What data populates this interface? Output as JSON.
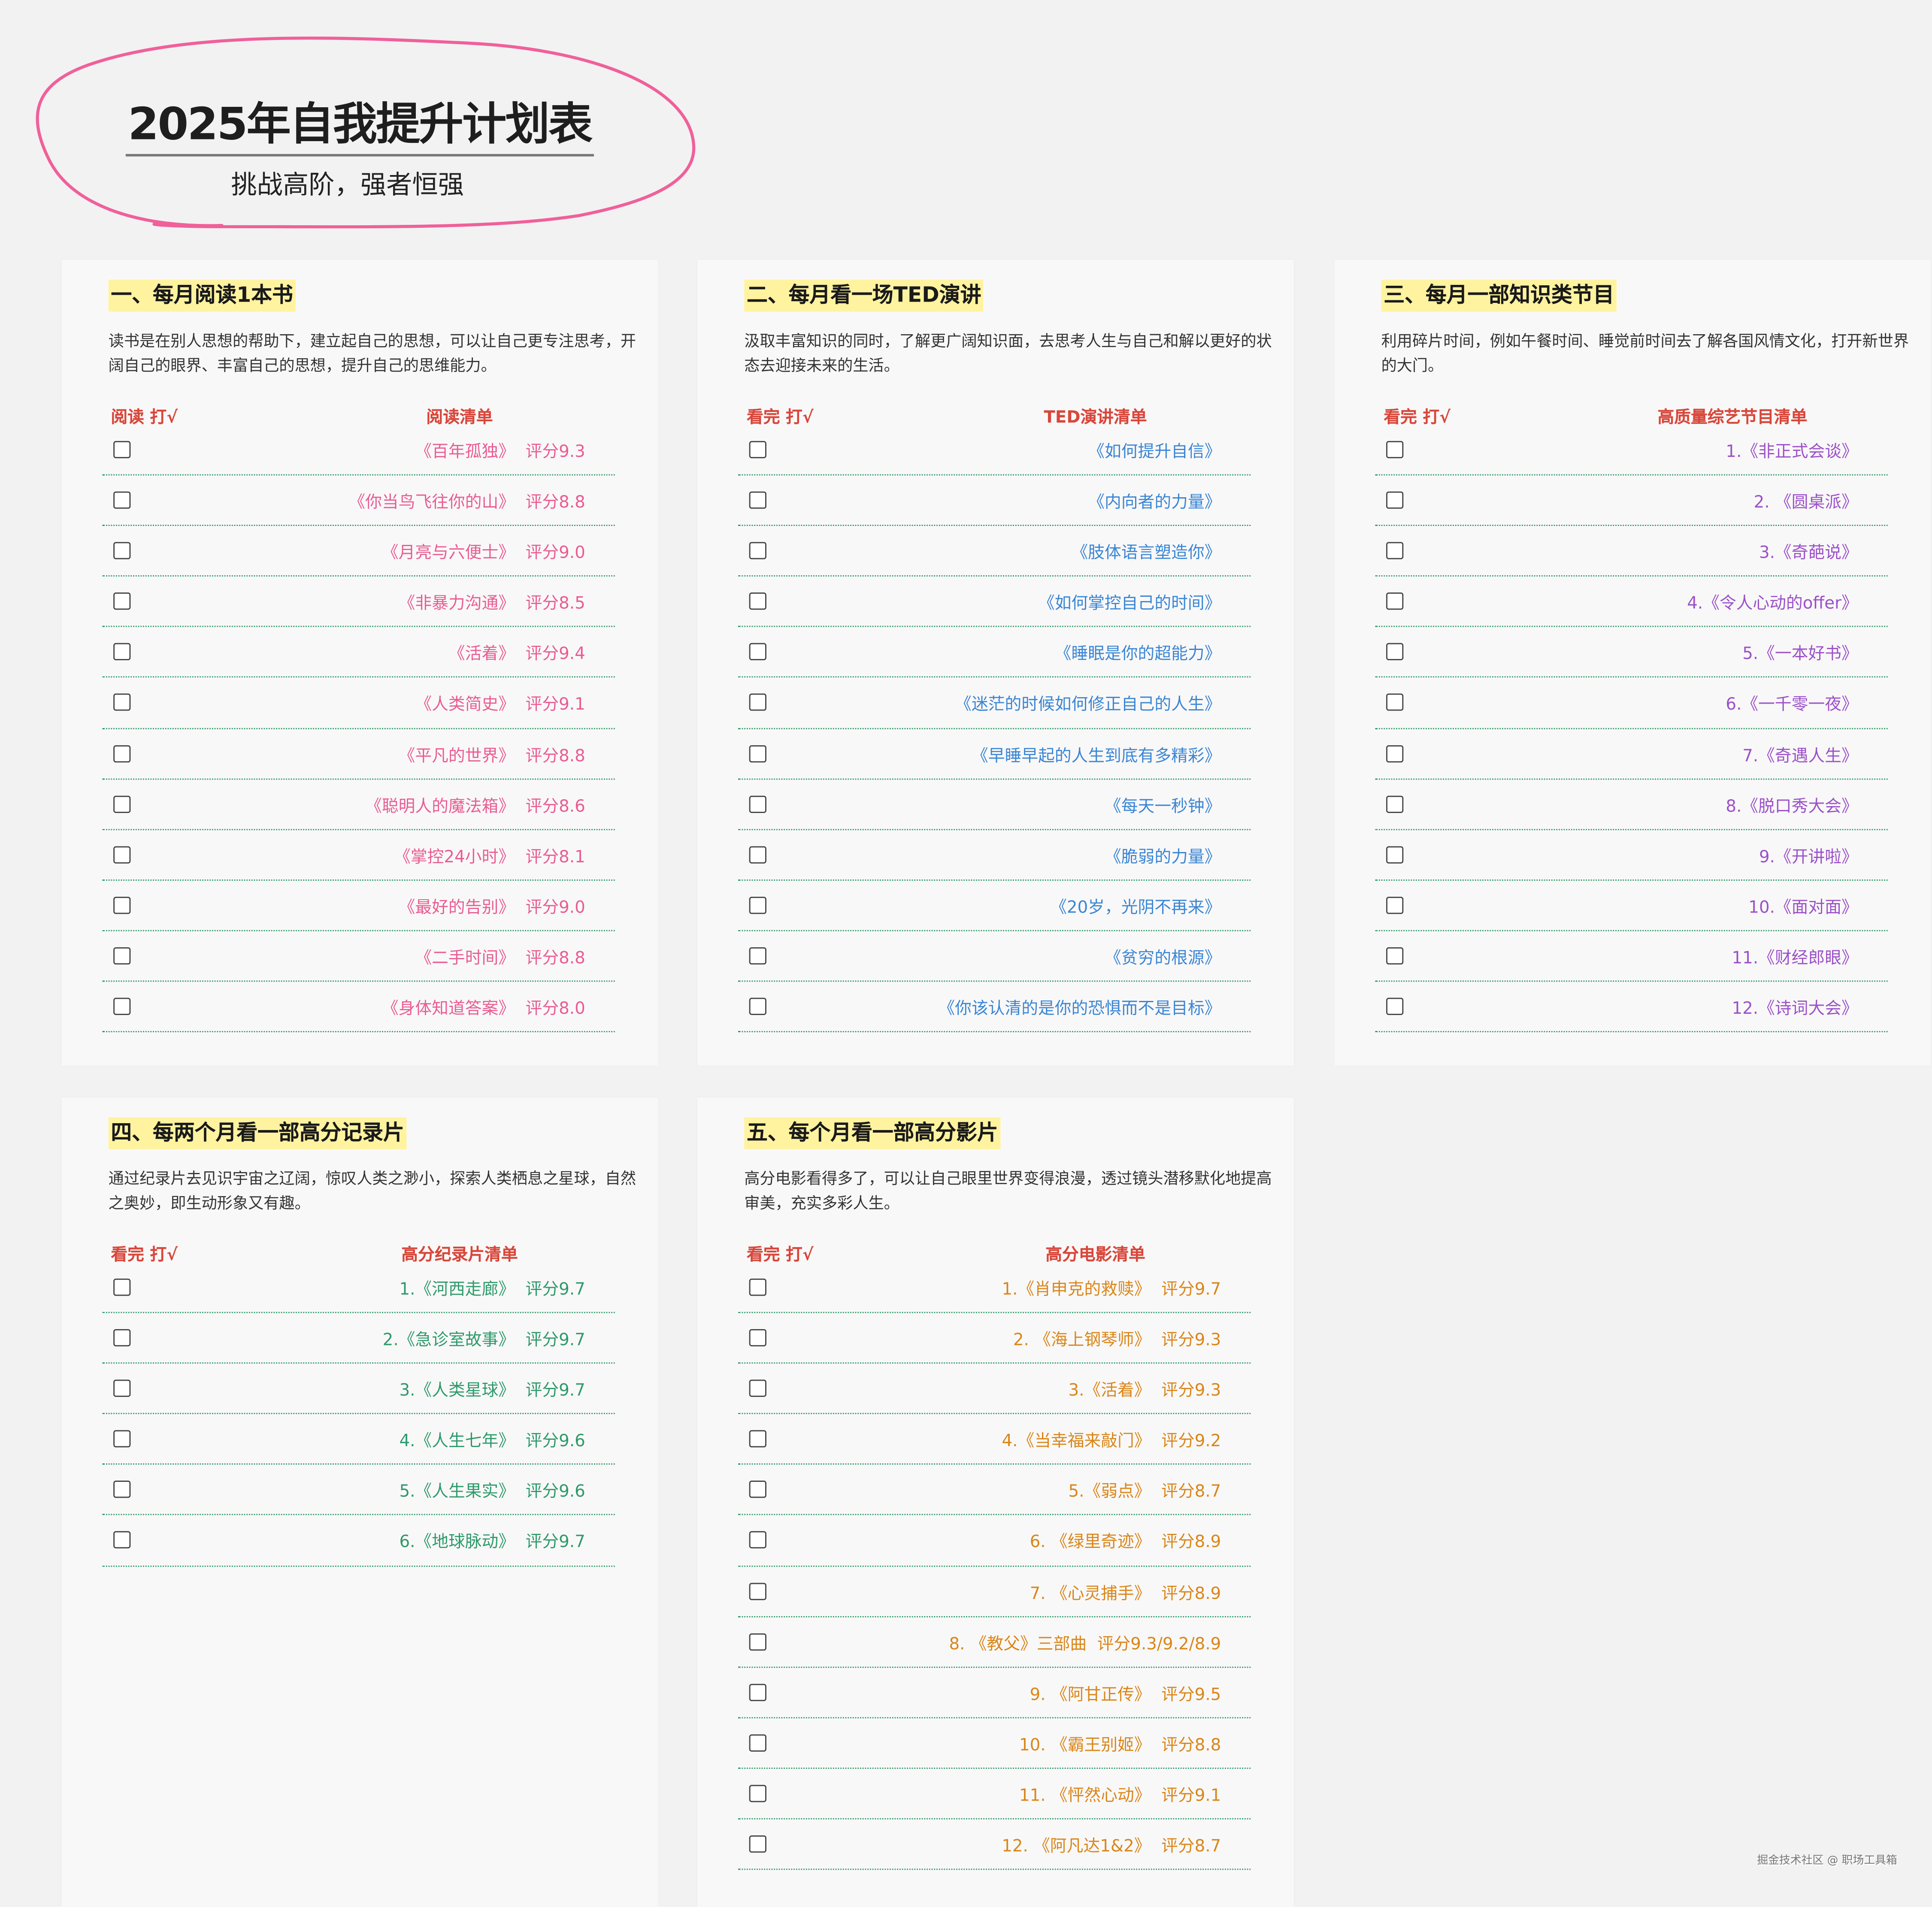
{
  "header": {
    "title": "2025年自我提升计划表",
    "subtitle": "挑战高阶，强者恒强",
    "ellipse_color": "#f0609a"
  },
  "colors": {
    "header_red": "#d8473b",
    "highlight": "#fff3a0",
    "divider_green": "#2e9a6b"
  },
  "sections": [
    {
      "title": "一、每月阅读1本书",
      "description": "读书是在别人思想的帮助下，建立起自己的思想，可以让自己更专注思考，开阔自己的眼界、丰富自己的思想，提升自己的思维能力。",
      "check_header": "阅读 打√",
      "list_header": "阅读清单",
      "item_color": "#e85d93",
      "items": [
        "《百年孤独》  评分9.3",
        "《你当鸟飞往你的山》  评分8.8",
        "《月亮与六便士》  评分9.0",
        "《非暴力沟通》  评分8.5",
        "《活着》  评分9.4",
        "《人类简史》  评分9.1",
        "《平凡的世界》  评分8.8",
        "《聪明人的魔法箱》  评分8.6",
        "《掌控24小时》  评分8.1",
        "《最好的告别》  评分9.0",
        "《二手时间》  评分8.8",
        "《身体知道答案》  评分8.0"
      ]
    },
    {
      "title": "二、每月看一场TED演讲",
      "description": "汲取丰富知识的同时，了解更广阔知识面，去思考人生与自己和解以更好的状态去迎接未来的生活。",
      "check_header": "看完 打√",
      "list_header": "TED演讲清单",
      "item_color": "#3a86d4",
      "items": [
        "《如何提升自信》",
        "《内向者的力量》",
        "《肢体语言塑造你》",
        "《如何掌控自己的时间》",
        "《睡眠是你的超能力》",
        "《迷茫的时候如何修正自己的人生》",
        "《早睡早起的人生到底有多精彩》",
        "《每天一秒钟》",
        "《脆弱的力量》",
        "《20岁，光阴不再来》",
        "《贫穷的根源》",
        "《你该认清的是你的恐惧而不是目标》"
      ]
    },
    {
      "title": "三、每月一部知识类节目",
      "description": "利用碎片时间，例如午餐时间、睡觉前时间去了解各国风情文化，打开新世界的大门。",
      "check_header": "看完 打√",
      "list_header": "高质量综艺节目清单",
      "item_color": "#9b51c9",
      "items": [
        "1.《非正式会谈》",
        "2. 《圆桌派》",
        "3.《奇葩说》",
        "4.《令人心动的offer》",
        "5.《一本好书》",
        "6.《一千零一夜》",
        "7.《奇遇人生》",
        "8.《脱口秀大会》",
        "9.《开讲啦》",
        "10.《面对面》",
        "11.《财经郎眼》",
        "12.《诗词大会》"
      ]
    },
    {
      "title": "四、每两个月看一部高分记录片",
      "description": "通过纪录片去见识宇宙之辽阔，惊叹人类之渺小，探索人类栖息之星球，自然之奥妙，即生动形象又有趣。",
      "check_header": "看完 打√",
      "list_header": "高分纪录片清单",
      "item_color": "#2e9a6b",
      "items": [
        "1.《河西走廊》  评分9.7",
        "2.《急诊室故事》  评分9.7",
        "3.《人类星球》  评分9.7",
        "4.《人生七年》  评分9.6",
        "5.《人生果实》  评分9.6",
        "6.《地球脉动》  评分9.7"
      ]
    },
    {
      "title": "五、每个月看一部高分影片",
      "description": "高分电影看得多了，可以让自己眼里世界变得浪漫，透过镜头潜移默化地提高审美，充实多彩人生。",
      "check_header": "看完 打√",
      "list_header": "高分电影清单",
      "item_color": "#d9861a",
      "items": [
        "1.《肖申克的救赎》  评分9.7",
        "2. 《海上钢琴师》  评分9.3",
        "3.《活着》  评分9.3",
        "4.《当幸福来敲门》  评分9.2",
        "5.《弱点》  评分8.7",
        "6. 《绿里奇迹》  评分8.9",
        "7. 《心灵捕手》  评分8.9",
        "8. 《教父》三部曲  评分9.3/9.2/8.9",
        "9. 《阿甘正传》  评分9.5",
        "10. 《霸王别姬》  评分8.8",
        "11. 《怦然心动》  评分9.1",
        "12. 《阿凡达1&2》  评分8.7"
      ]
    }
  ],
  "watermark": "掘金技术社区 @ 职场工具箱"
}
